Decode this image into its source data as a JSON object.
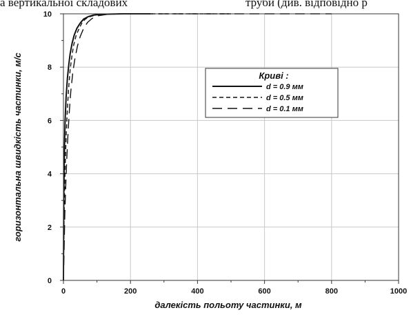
{
  "page_text": {
    "left_fragment": "а вертикальної складових",
    "right_fragment": "труби (див. відповідно р"
  },
  "chart_data": {
    "type": "line",
    "title": "",
    "xlabel": "далекість польоту частинки, м",
    "ylabel": "горизонтальна швидкість частинки, м/с",
    "xlim": [
      0,
      1000
    ],
    "ylim": [
      0,
      10
    ],
    "x_ticks": [
      "0",
      "200",
      "400",
      "600",
      "800",
      "1000"
    ],
    "y_ticks": [
      "0",
      "2",
      "4",
      "6",
      "8",
      "10"
    ],
    "grid": true,
    "legend_title": "Криві :",
    "legend_position": "upper-right (inside plot)",
    "series": [
      {
        "name": "d = 0.9 мм",
        "style": "solid",
        "x": [
          0,
          1,
          3,
          5,
          8,
          12,
          16,
          20,
          26,
          32,
          40,
          50,
          60,
          75,
          90,
          110,
          140,
          180,
          220,
          260
        ],
        "y": [
          0,
          3.0,
          5.0,
          6.0,
          6.9,
          7.6,
          8.1,
          8.5,
          8.9,
          9.2,
          9.45,
          9.65,
          9.8,
          9.9,
          9.95,
          9.98,
          9.99,
          10,
          10,
          10
        ]
      },
      {
        "name": "d = 0.5 мм",
        "style": "short-dash",
        "x": [
          0,
          2,
          5,
          8,
          12,
          16,
          20,
          25,
          30,
          38,
          45,
          55,
          65,
          80,
          100,
          130,
          170,
          220,
          300,
          400,
          500
        ],
        "y": [
          0,
          2.5,
          4.2,
          5.4,
          6.5,
          7.3,
          7.9,
          8.4,
          8.8,
          9.2,
          9.4,
          9.65,
          9.8,
          9.9,
          9.96,
          9.99,
          10,
          10,
          10,
          10,
          10
        ]
      },
      {
        "name": "d = 0.1 мм",
        "style": "long-dash",
        "x": [
          0,
          2,
          4,
          7,
          10,
          14,
          18,
          22,
          28,
          34,
          42,
          50,
          60,
          72,
          85,
          100,
          130,
          170,
          250,
          400,
          600,
          800
        ],
        "y": [
          0,
          1.2,
          2.4,
          3.6,
          4.6,
          5.6,
          6.4,
          7.1,
          7.8,
          8.3,
          8.8,
          9.15,
          9.45,
          9.68,
          9.82,
          9.92,
          9.98,
          10,
          10,
          10,
          10,
          10
        ]
      }
    ]
  },
  "colors": {
    "line": "#111111",
    "grid": "#c8c8c8",
    "frame": "#333333"
  }
}
